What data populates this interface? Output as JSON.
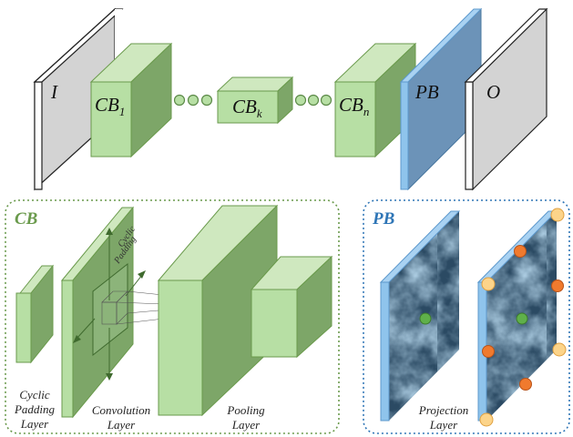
{
  "top_row": {
    "input_label": "I",
    "cb1_label": "CB",
    "cb1_sub": "1",
    "cbk_label": "CB",
    "cbk_sub": "k",
    "cbn_label": "CB",
    "cbn_sub": "n",
    "pb_label": "PB",
    "output_label": "O"
  },
  "cb_panel": {
    "title": "CB",
    "cyclic_padding_note_1": "Cyclic",
    "cyclic_padding_note_2": "Padding",
    "layers": [
      {
        "line1": "Cyclic",
        "line2": "Padding",
        "line3": "Layer"
      },
      {
        "line1": "Convolution",
        "line2": "Layer"
      },
      {
        "line1": "Pooling",
        "line2": "Layer"
      }
    ]
  },
  "pb_panel": {
    "title": "PB",
    "layer_line1": "Projection",
    "layer_line2": "Layer"
  },
  "colors": {
    "green_front": "#b7dfa4",
    "green_side": "#7da668",
    "green_top": "#cfe8bf",
    "green_dark": "#5c8a48",
    "blue_edge": "#8fc4ec",
    "blue_front": "#6c93b8",
    "gray_front": "#d3d3d3",
    "cb_title": "#6a9a4c",
    "pb_title": "#2e75b6",
    "pb_border": "#2e75b6",
    "orange_dot": "#f07a2e",
    "yellow_dot": "#fcd48a",
    "green_dot": "#5fb04a"
  }
}
